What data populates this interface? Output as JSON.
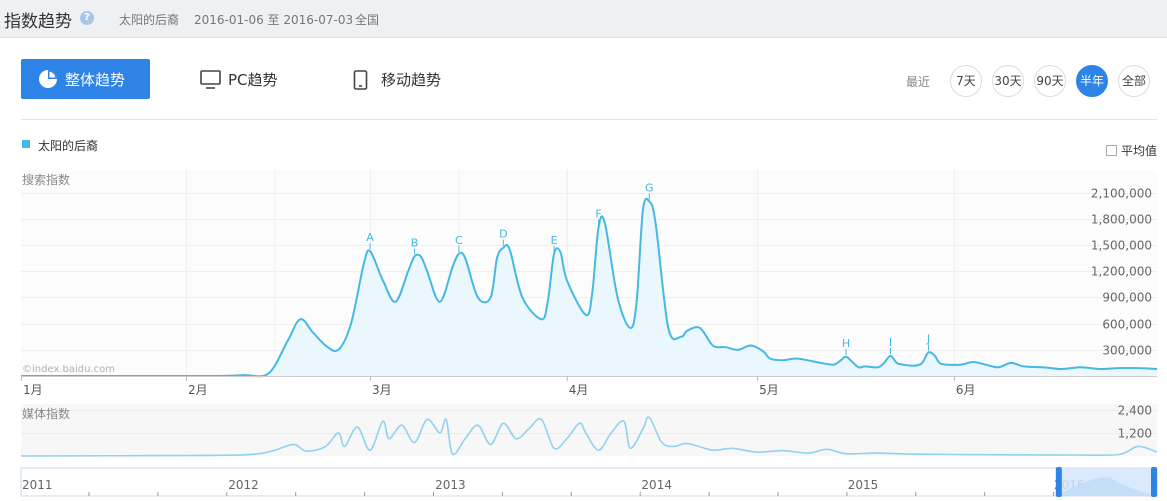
{
  "header": {
    "title": "指数趋势",
    "keyword": "太阳的后裔",
    "date_range": "2016-01-06 至 2016-07-03",
    "region": "全国"
  },
  "tabs": {
    "overall": "整体趋势",
    "pc": "PC趋势",
    "mobile": "移动趋势"
  },
  "range": {
    "label": "最近",
    "options": [
      "7天",
      "30天",
      "90天",
      "半年",
      "全部"
    ],
    "active": "半年"
  },
  "legend": {
    "series": "太阳的后裔",
    "average": "平均值"
  },
  "colors": {
    "accent": "#2d83e6",
    "line": "#45b8e3",
    "media": "#8fd3ee"
  },
  "chart_data": [
    {
      "type": "area",
      "title": "搜索指数",
      "watermark": "©index.baidu.com",
      "x_tick_labels": [
        "1月",
        "2月",
        "3月",
        "4月",
        "5月",
        "6月"
      ],
      "y_tick_labels": [
        "300,000",
        "600,000",
        "900,000",
        "1,200,000",
        "1,500,000",
        "1,800,000",
        "2,100,000"
      ],
      "ylim": [
        0,
        2200000
      ],
      "x_range": [
        "2016-01-06",
        "2016-07-03"
      ],
      "series": [
        {
          "name": "太阳的后裔",
          "points": [
            [
              "2016-01-06",
              0
            ],
            [
              "2016-01-20",
              0
            ],
            [
              "2016-02-05",
              0
            ],
            [
              "2016-02-10",
              10000
            ],
            [
              "2016-02-14",
              30000
            ],
            [
              "2016-02-17",
              400000
            ],
            [
              "2016-02-19",
              650000
            ],
            [
              "2016-02-21",
              500000
            ],
            [
              "2016-02-23",
              350000
            ],
            [
              "2016-02-25",
              300000
            ],
            [
              "2016-02-27",
              600000
            ],
            [
              "2016-02-29",
              1280000
            ],
            [
              "2016-03-01",
              1430000
            ],
            [
              "2016-03-03",
              1100000
            ],
            [
              "2016-03-05",
              850000
            ],
            [
              "2016-03-07",
              1200000
            ],
            [
              "2016-03-08",
              1370000
            ],
            [
              "2016-03-09",
              1370000
            ],
            [
              "2016-03-10",
              1200000
            ],
            [
              "2016-03-12",
              850000
            ],
            [
              "2016-03-14",
              1250000
            ],
            [
              "2016-03-15",
              1400000
            ],
            [
              "2016-03-16",
              1350000
            ],
            [
              "2016-03-18",
              900000
            ],
            [
              "2016-03-20",
              900000
            ],
            [
              "2016-03-21",
              1350000
            ],
            [
              "2016-03-22",
              1470000
            ],
            [
              "2016-03-23",
              1450000
            ],
            [
              "2016-03-25",
              900000
            ],
            [
              "2016-03-28",
              650000
            ],
            [
              "2016-03-29",
              850000
            ],
            [
              "2016-03-30",
              1400000
            ],
            [
              "2016-03-31",
              1420000
            ],
            [
              "2016-04-01",
              1100000
            ],
            [
              "2016-04-04",
              700000
            ],
            [
              "2016-04-05",
              950000
            ],
            [
              "2016-04-06",
              1700000
            ],
            [
              "2016-04-07",
              1750000
            ],
            [
              "2016-04-09",
              900000
            ],
            [
              "2016-04-11",
              550000
            ],
            [
              "2016-04-12",
              850000
            ],
            [
              "2016-04-13",
              1900000
            ],
            [
              "2016-04-14",
              2000000
            ],
            [
              "2016-04-15",
              1750000
            ],
            [
              "2016-04-17",
              550000
            ],
            [
              "2016-04-19",
              450000
            ],
            [
              "2016-04-20",
              520000
            ],
            [
              "2016-04-22",
              550000
            ],
            [
              "2016-04-24",
              350000
            ],
            [
              "2016-04-26",
              330000
            ],
            [
              "2016-04-28",
              300000
            ],
            [
              "2016-04-30",
              350000
            ],
            [
              "2016-05-02",
              280000
            ],
            [
              "2016-05-03",
              200000
            ],
            [
              "2016-05-05",
              180000
            ],
            [
              "2016-05-07",
              200000
            ],
            [
              "2016-05-09",
              180000
            ],
            [
              "2016-05-11",
              150000
            ],
            [
              "2016-05-13",
              130000
            ],
            [
              "2016-05-14",
              170000
            ],
            [
              "2016-05-15",
              220000
            ],
            [
              "2016-05-16",
              160000
            ],
            [
              "2016-05-17",
              100000
            ],
            [
              "2016-05-18",
              110000
            ],
            [
              "2016-05-20",
              100000
            ],
            [
              "2016-05-21",
              150000
            ],
            [
              "2016-05-22",
              230000
            ],
            [
              "2016-05-23",
              150000
            ],
            [
              "2016-05-24",
              130000
            ],
            [
              "2016-05-25",
              120000
            ],
            [
              "2016-05-26",
              120000
            ],
            [
              "2016-05-27",
              150000
            ],
            [
              "2016-05-28",
              270000
            ],
            [
              "2016-05-29",
              230000
            ],
            [
              "2016-05-30",
              140000
            ],
            [
              "2016-06-02",
              130000
            ],
            [
              "2016-06-04",
              160000
            ],
            [
              "2016-06-06",
              130000
            ],
            [
              "2016-06-08",
              100000
            ],
            [
              "2016-06-10",
              150000
            ],
            [
              "2016-06-12",
              110000
            ],
            [
              "2016-06-15",
              100000
            ],
            [
              "2016-06-18",
              80000
            ],
            [
              "2016-06-21",
              100000
            ],
            [
              "2016-06-24",
              80000
            ],
            [
              "2016-06-27",
              90000
            ],
            [
              "2016-06-30",
              90000
            ],
            [
              "2016-07-03",
              80000
            ]
          ]
        }
      ],
      "annotations": [
        {
          "label": "A",
          "x": "2016-03-01",
          "y": 1430000
        },
        {
          "label": "B",
          "x": "2016-03-08",
          "y": 1370000
        },
        {
          "label": "C",
          "x": "2016-03-15",
          "y": 1400000
        },
        {
          "label": "D",
          "x": "2016-03-22",
          "y": 1470000
        },
        {
          "label": "E",
          "x": "2016-03-30",
          "y": 1400000
        },
        {
          "label": "F",
          "x": "2016-04-06",
          "y": 1700000
        },
        {
          "label": "G",
          "x": "2016-04-14",
          "y": 2000000
        },
        {
          "label": "H",
          "x": "2016-05-15",
          "y": 220000
        },
        {
          "label": "I",
          "x": "2016-05-22",
          "y": 230000
        },
        {
          "label": "J",
          "x": "2016-05-28",
          "y": 270000
        }
      ]
    },
    {
      "type": "line",
      "title": "媒体指数",
      "y_tick_labels": [
        "1,200",
        "2,400"
      ],
      "ylim": [
        0,
        2700
      ],
      "x_range": [
        "2016-01-06",
        "2016-07-03"
      ],
      "series": [
        {
          "name": "媒体指数",
          "points": [
            [
              "2016-01-06",
              0
            ],
            [
              "2016-02-05",
              30
            ],
            [
              "2016-02-12",
              100
            ],
            [
              "2016-02-15",
              300
            ],
            [
              "2016-02-18",
              600
            ],
            [
              "2016-02-20",
              250
            ],
            [
              "2016-02-23",
              500
            ],
            [
              "2016-02-25",
              1200
            ],
            [
              "2016-02-26",
              500
            ],
            [
              "2016-02-28",
              1500
            ],
            [
              "2016-03-01",
              300
            ],
            [
              "2016-03-03",
              1800
            ],
            [
              "2016-03-04",
              900
            ],
            [
              "2016-03-06",
              1600
            ],
            [
              "2016-03-08",
              700
            ],
            [
              "2016-03-10",
              1900
            ],
            [
              "2016-03-12",
              1200
            ],
            [
              "2016-03-13",
              1900
            ],
            [
              "2016-03-14",
              100
            ],
            [
              "2016-03-16",
              900
            ],
            [
              "2016-03-18",
              1600
            ],
            [
              "2016-03-20",
              600
            ],
            [
              "2016-03-22",
              1700
            ],
            [
              "2016-03-24",
              900
            ],
            [
              "2016-03-26",
              1400
            ],
            [
              "2016-03-28",
              1900
            ],
            [
              "2016-03-30",
              400
            ],
            [
              "2016-04-01",
              900
            ],
            [
              "2016-04-03",
              1700
            ],
            [
              "2016-04-04",
              1200
            ],
            [
              "2016-04-06",
              300
            ],
            [
              "2016-04-08",
              1200
            ],
            [
              "2016-04-10",
              1800
            ],
            [
              "2016-04-11",
              400
            ],
            [
              "2016-04-13",
              1400
            ],
            [
              "2016-04-14",
              2000
            ],
            [
              "2016-04-16",
              700
            ],
            [
              "2016-04-18",
              500
            ],
            [
              "2016-04-20",
              650
            ],
            [
              "2016-04-24",
              300
            ],
            [
              "2016-04-27",
              400
            ],
            [
              "2016-05-01",
              200
            ],
            [
              "2016-05-05",
              280
            ],
            [
              "2016-05-09",
              150
            ],
            [
              "2016-05-12",
              350
            ],
            [
              "2016-05-15",
              120
            ],
            [
              "2016-05-20",
              150
            ],
            [
              "2016-05-25",
              100
            ],
            [
              "2016-06-01",
              80
            ],
            [
              "2016-06-10",
              60
            ],
            [
              "2016-06-20",
              50
            ],
            [
              "2016-06-27",
              80
            ],
            [
              "2016-06-30",
              500
            ],
            [
              "2016-07-03",
              200
            ]
          ]
        }
      ]
    },
    {
      "type": "area",
      "title": "overview",
      "x_tick_labels": [
        "2011",
        "2012",
        "2013",
        "2014",
        "2015",
        "2016"
      ],
      "x_range": [
        "2011-01-01",
        "2016-07-03"
      ],
      "selection": [
        "2016-01-06",
        "2016-07-03"
      ]
    }
  ]
}
